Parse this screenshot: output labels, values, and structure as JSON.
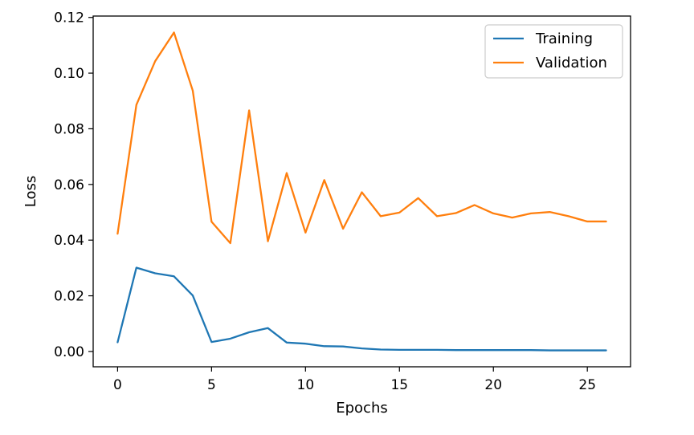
{
  "chart_data": {
    "type": "line",
    "xlabel": "Epochs",
    "ylabel": "Loss",
    "xlim": [
      -1.3,
      27.3
    ],
    "ylim": [
      -0.0055,
      0.1205
    ],
    "xticks": [
      0,
      5,
      10,
      15,
      20,
      25
    ],
    "xtick_labels": [
      "0",
      "5",
      "10",
      "15",
      "20",
      "25"
    ],
    "yticks": [
      0.0,
      0.02,
      0.04,
      0.06,
      0.08,
      0.1,
      0.12
    ],
    "ytick_labels": [
      "0.00",
      "0.02",
      "0.04",
      "0.06",
      "0.08",
      "0.10",
      "0.12"
    ],
    "grid": false,
    "legend_position": "upper right",
    "x": [
      0,
      1,
      2,
      3,
      4,
      5,
      6,
      7,
      8,
      9,
      10,
      11,
      12,
      13,
      14,
      15,
      16,
      17,
      18,
      19,
      20,
      21,
      22,
      23,
      24,
      25,
      26
    ],
    "series": [
      {
        "name": "Training",
        "color": "#1f77b4",
        "values": [
          0.0033,
          0.0301,
          0.0281,
          0.027,
          0.0201,
          0.0034,
          0.0046,
          0.0069,
          0.0084,
          0.0032,
          0.0028,
          0.0019,
          0.0018,
          0.0011,
          0.0007,
          0.0006,
          0.0006,
          0.0006,
          0.0005,
          0.0005,
          0.0005,
          0.0005,
          0.0005,
          0.0004,
          0.0004,
          0.0004,
          0.0004
        ]
      },
      {
        "name": "Validation",
        "color": "#ff7f0e",
        "values": [
          0.0423,
          0.0886,
          0.1043,
          0.1146,
          0.0937,
          0.0466,
          0.0389,
          0.0866,
          0.0396,
          0.0641,
          0.0427,
          0.0616,
          0.0441,
          0.0572,
          0.0486,
          0.0499,
          0.0551,
          0.0486,
          0.0497,
          0.0526,
          0.0496,
          0.0481,
          0.0496,
          0.0501,
          0.0486,
          0.0467,
          0.0467
        ]
      }
    ]
  }
}
